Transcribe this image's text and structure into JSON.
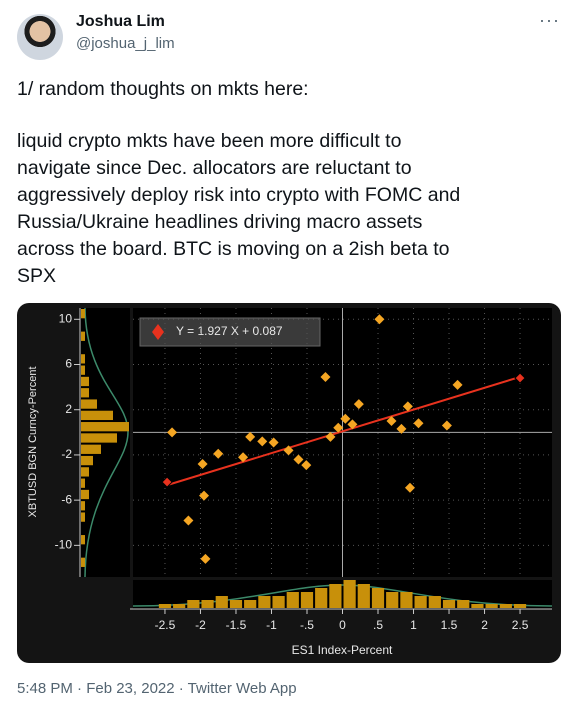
{
  "tweet": {
    "name": "Joshua Lim",
    "handle": "@joshua_j_lim",
    "lines": [
      "1/ random thoughts on mkts here:",
      "liquid crypto mkts have been more difficult to",
      "navigate since Dec. allocators are reluctant to",
      "aggressively deploy risk into crypto with FOMC and",
      "Russia/Ukraine headlines driving macro assets",
      "across the board. BTC is moving on a 2ish beta to",
      "SPX"
    ],
    "footer": "5:48 PM · Feb 23, 2022 · Twitter Web App"
  },
  "chart_data": {
    "type": "scatter",
    "legend_label": "Y = 1.927 X + 0.087",
    "x_label": "ES1 Index-Percent",
    "y_label": "XBTUSD BGN Curncy-Percent",
    "xlim": [
      -2.95,
      2.95
    ],
    "ylim": [
      -12.8,
      11
    ],
    "xticks": [
      -2.5,
      -2,
      -1.5,
      -1,
      {
        "value": -0.5,
        "label": "-.5"
      },
      0,
      {
        "value": 0.5,
        "label": ".5"
      },
      1,
      1.5,
      2,
      2.5
    ],
    "yticks": [
      10,
      6,
      2,
      -2,
      -6,
      -10
    ],
    "x": [
      0.52,
      -0.24,
      2.5,
      1.62,
      0.23,
      0.92,
      0.69,
      1.07,
      0.04,
      0.14,
      0.83,
      1.47,
      -0.06,
      -0.17,
      -2.4,
      -1.3,
      -1.13,
      -0.97,
      -0.76,
      -0.62,
      -0.51,
      -1.4,
      -1.75,
      -1.97,
      -2.47,
      -1.95,
      0.95,
      -2.17,
      -1.93
    ],
    "values": [
      10.0,
      4.9,
      4.8,
      4.2,
      2.5,
      2.3,
      1.0,
      0.8,
      1.2,
      0.7,
      0.3,
      0.6,
      0.4,
      -0.4,
      0.0,
      -0.4,
      -0.8,
      -0.9,
      -1.6,
      -2.4,
      -2.9,
      -2.2,
      -1.9,
      -2.8,
      -4.4,
      -5.6,
      -4.9,
      -7.8,
      -11.2
    ],
    "color": "#f5a623",
    "fit": {
      "slope": 1.927,
      "intercept": 0.087,
      "color": "#e8321e"
    },
    "x_hist": {
      "bins": [
        -2.6,
        -2.4,
        -2.2,
        -2.0,
        -1.8,
        -1.6,
        -1.4,
        -1.2,
        -1.0,
        -0.8,
        -0.6,
        -0.4,
        -0.2,
        0.0,
        0.2,
        0.4,
        0.6,
        0.8,
        1.0,
        1.2,
        1.4,
        1.6,
        1.8,
        2.0,
        2.2,
        2.4,
        2.6
      ],
      "counts": [
        1,
        1,
        2,
        2,
        3,
        2,
        2,
        3,
        3,
        4,
        4,
        5,
        6,
        7,
        6,
        5,
        4,
        4,
        3,
        3,
        2,
        2,
        1,
        1,
        1,
        1
      ],
      "color": "#c8900a"
    },
    "y_hist": {
      "bins": [
        -12,
        -11,
        -10,
        -9,
        -8,
        -7,
        -6,
        -5,
        -4,
        -3,
        -2,
        -1,
        0,
        1,
        2,
        3,
        4,
        5,
        6,
        7,
        8,
        9,
        10,
        11
      ],
      "counts": [
        1,
        0,
        1,
        0,
        1,
        1,
        2,
        1,
        2,
        3,
        5,
        9,
        12,
        8,
        4,
        2,
        2,
        1,
        1,
        0,
        1,
        0,
        1
      ],
      "color": "#c8900a"
    },
    "grid": true
  }
}
